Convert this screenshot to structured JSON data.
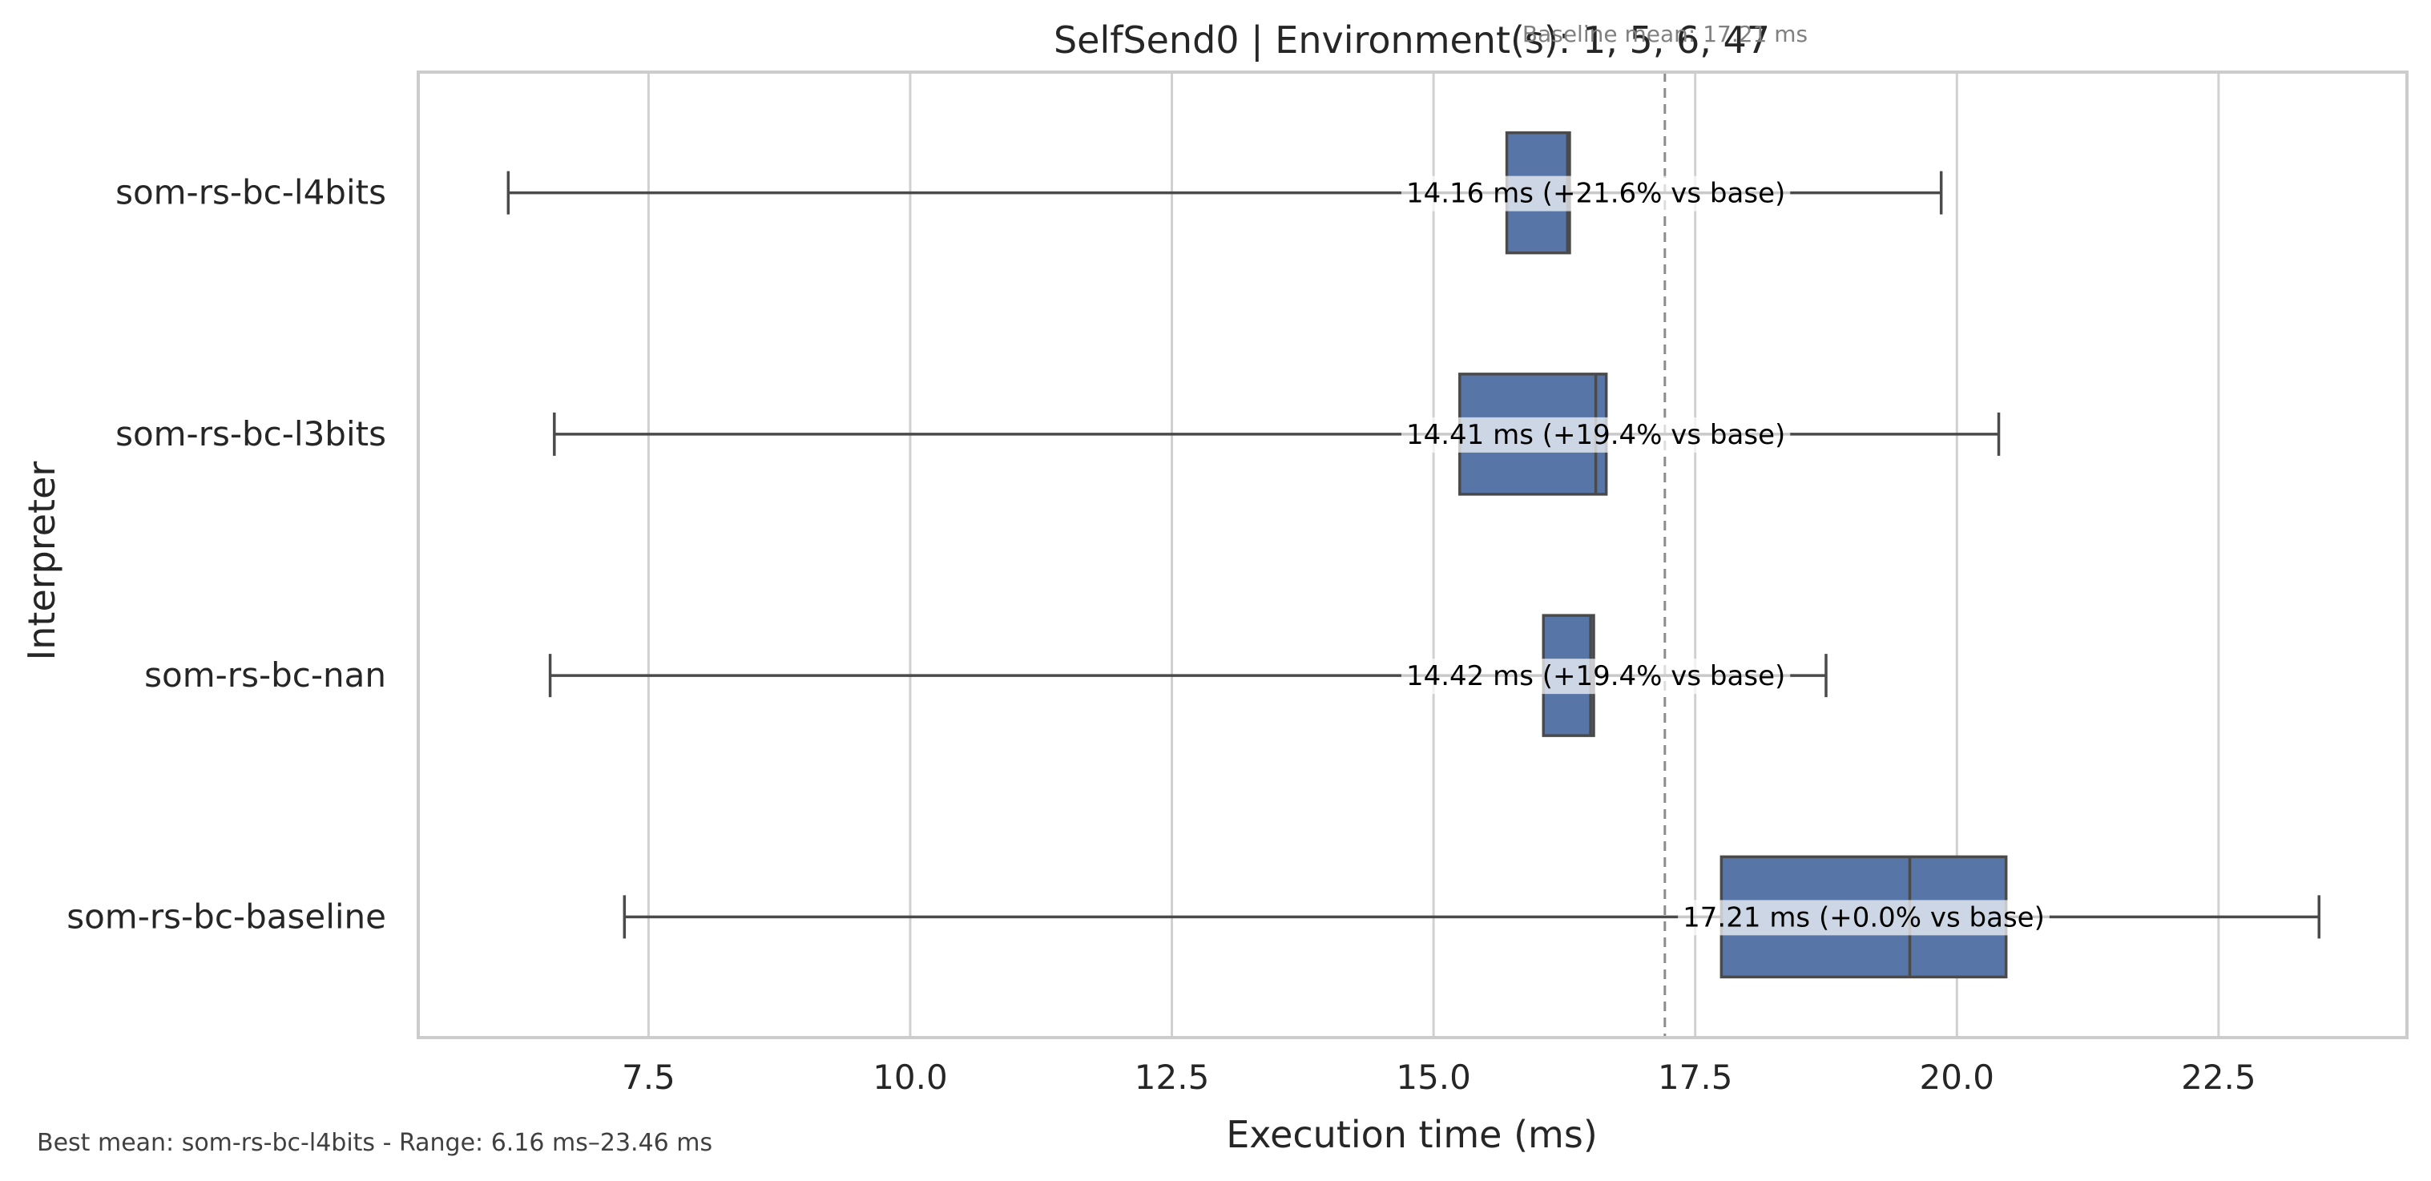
{
  "chart_data": {
    "type": "box",
    "orientation": "horizontal",
    "title": "SelfSend0 | Environment(s): 1, 5, 6, 47",
    "xlabel": "Execution time (ms)",
    "ylabel": "Interpreter",
    "xlim": [
      5.3,
      24.3
    ],
    "xticks": [
      7.5,
      10.0,
      12.5,
      15.0,
      17.5,
      20.0,
      22.5
    ],
    "xtick_labels": [
      "7.5",
      "10.0",
      "12.5",
      "15.0",
      "17.5",
      "20.0",
      "22.5"
    ],
    "grid": "vertical",
    "baseline": {
      "value": 17.21,
      "label": "Baseline mean: 17.21 ms",
      "style": "dashed"
    },
    "categories": [
      "som-rs-bc-l4bits",
      "som-rs-bc-l3bits",
      "som-rs-bc-nan",
      "som-rs-bc-baseline"
    ],
    "series": [
      {
        "name": "som-rs-bc-l4bits",
        "whisker_low": 6.16,
        "q1": 15.7,
        "median": 16.28,
        "q3": 16.3,
        "whisker_high": 19.85,
        "label": "14.16 ms  (+21.6% vs base)"
      },
      {
        "name": "som-rs-bc-l3bits",
        "whisker_low": 6.6,
        "q1": 15.25,
        "median": 16.55,
        "q3": 16.65,
        "whisker_high": 20.4,
        "label": "14.41 ms  (+19.4% vs base)"
      },
      {
        "name": "som-rs-bc-nan",
        "whisker_low": 6.56,
        "q1": 16.05,
        "median": 16.5,
        "q3": 16.53,
        "whisker_high": 18.75,
        "label": "14.42 ms  (+19.4% vs base)"
      },
      {
        "name": "som-rs-bc-baseline",
        "whisker_low": 7.27,
        "q1": 17.75,
        "median": 19.55,
        "q3": 20.47,
        "whisker_high": 23.46,
        "label": "17.21 ms  (+0.0% vs base)"
      }
    ],
    "footer": "Best mean: som-rs-bc-l4bits - Range: 6.16 ms–23.46 ms",
    "colors": {
      "box_fill": "#5875a8",
      "box_edge": "#4a4a4a",
      "whisker": "#4a4a4a",
      "grid": "#d0d0d0",
      "frame": "#cccccc",
      "baseline_line": "#8c8c8c",
      "label_bg": "#ffffff"
    }
  }
}
